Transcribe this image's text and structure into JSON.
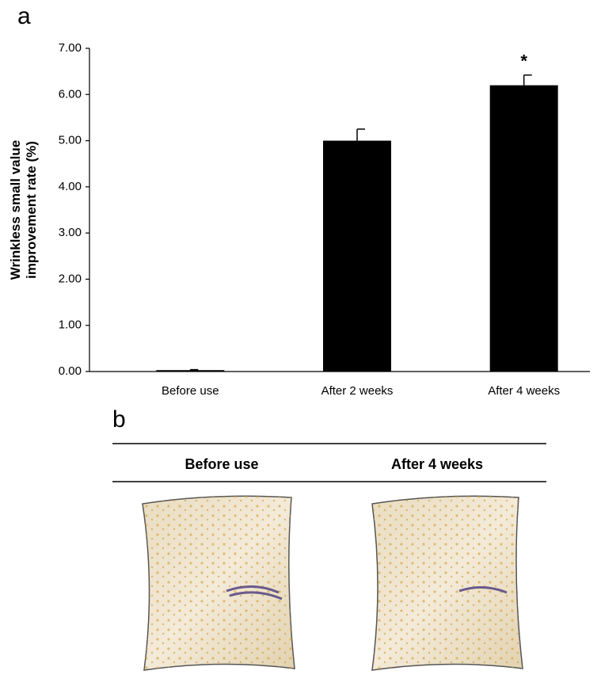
{
  "chart_data": {
    "type": "bar",
    "panel_label": "a",
    "ylabel": [
      "Wrinkless small value",
      "improvement rate (%)"
    ],
    "categories": [
      "Before use",
      "After 2 weeks",
      "After 4 weeks"
    ],
    "values": [
      0.03,
      5.0,
      6.2
    ],
    "errors": [
      0.01,
      0.25,
      0.22
    ],
    "color": "#000000",
    "annotations": [
      "",
      "",
      "*"
    ],
    "ylim": [
      0,
      7
    ],
    "yticks": [
      {
        "value": 0,
        "label": "0.00"
      },
      {
        "value": 1,
        "label": "1.00"
      },
      {
        "value": 2,
        "label": "2.00"
      },
      {
        "value": 3,
        "label": "3.00"
      },
      {
        "value": 4,
        "label": "4.00"
      },
      {
        "value": 5,
        "label": "5.00"
      },
      {
        "value": 6,
        "label": "6.00"
      },
      {
        "value": 7,
        "label": "7.00"
      }
    ],
    "grid": false
  },
  "image_panel": {
    "panel_label": "b",
    "columns": [
      "Before use",
      "After 4 weeks"
    ]
  }
}
